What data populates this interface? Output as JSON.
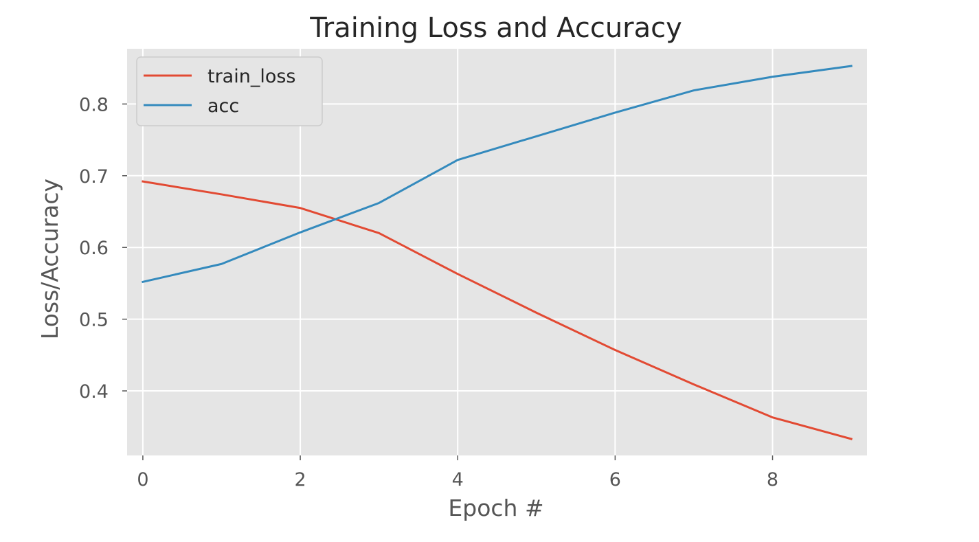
{
  "chart_data": {
    "type": "line",
    "title": "Training Loss and Accuracy",
    "xlabel": "Epoch #",
    "ylabel": "Loss/Accuracy",
    "x": [
      0,
      1,
      2,
      3,
      4,
      5,
      6,
      7,
      8,
      9
    ],
    "xlim": [
      -0.2,
      9.2
    ],
    "ylim": [
      0.31,
      0.877
    ],
    "xticks": [
      0,
      2,
      4,
      6,
      8
    ],
    "yticks": [
      0.4,
      0.5,
      0.6,
      0.7,
      0.8
    ],
    "xtick_labels": [
      "0",
      "2",
      "4",
      "6",
      "8"
    ],
    "ytick_labels": [
      "0.4",
      "0.5",
      "0.6",
      "0.7",
      "0.8"
    ],
    "grid": true,
    "legend_position": "top-left",
    "background_color": "#e5e5e5",
    "grid_color": "#ffffff",
    "series": [
      {
        "name": "train_loss",
        "color": "#e24a33",
        "values": [
          0.692,
          0.674,
          0.655,
          0.62,
          0.563,
          0.509,
          0.457,
          0.409,
          0.363,
          0.333
        ]
      },
      {
        "name": "acc",
        "color": "#348abd",
        "values": [
          0.552,
          0.577,
          0.621,
          0.662,
          0.722,
          0.755,
          0.788,
          0.819,
          0.838,
          0.853
        ]
      }
    ]
  }
}
